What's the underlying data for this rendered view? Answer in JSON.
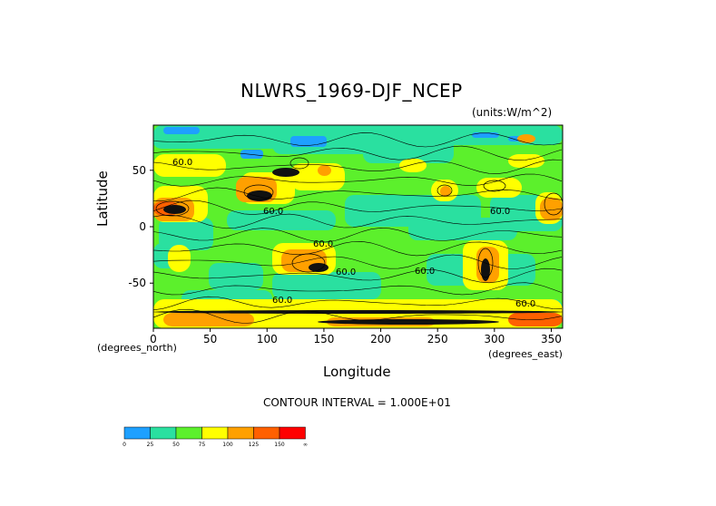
{
  "title": "NLWRS_1969-DJF_NCEP",
  "units": "(units:W/m^2)",
  "ylabel": "Latitude",
  "ylabel_unit": "(degrees_north)",
  "xlabel": "Longitude",
  "xlabel_unit": "(degrees_east)",
  "contour_interval": "CONTOUR INTERVAL = 1.000E+01",
  "chart_data": {
    "type": "heatmap",
    "xlim": [
      0,
      360
    ],
    "ylim": [
      -90,
      90
    ],
    "x_ticks": [
      "0",
      "50",
      "100",
      "150",
      "200",
      "250",
      "300",
      "350"
    ],
    "x_tick_values": [
      0,
      50,
      100,
      150,
      200,
      250,
      300,
      350
    ],
    "y_ticks": [
      "50",
      "0",
      "-50"
    ],
    "y_tick_values": [
      50,
      0,
      -50
    ],
    "contour_labels": [
      "60.0",
      "60.0",
      "60.0",
      "60.0",
      "60.0",
      "60.0",
      "60.0",
      "60.0"
    ],
    "colorbar": {
      "bins": [
        {
          "color": "#1ea0ff"
        },
        {
          "color": "#2ae0a0"
        },
        {
          "color": "#5cf02c"
        },
        {
          "color": "#ffff00"
        },
        {
          "color": "#ffa000"
        },
        {
          "color": "#ff6000"
        },
        {
          "color": "#ff0000"
        }
      ],
      "labels": [
        "0",
        "25",
        "50",
        "75",
        "100",
        "125",
        "150",
        "∞"
      ]
    }
  }
}
